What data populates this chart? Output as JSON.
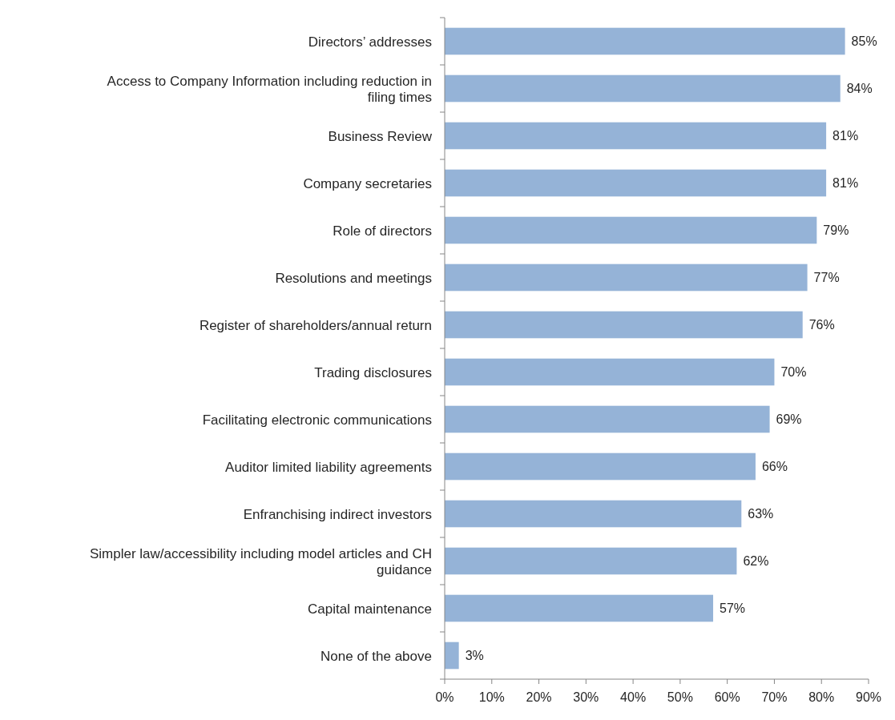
{
  "chart_data": {
    "type": "bar",
    "orientation": "horizontal",
    "categories": [
      "Directors’ addresses",
      "Access to Company Information  including reduction in filing times",
      "Business Review",
      "Company secretaries",
      "Role of directors",
      "Resolutions and meetings",
      "Register of shareholders/annual return",
      "Trading disclosures",
      "Facilitating electronic communications",
      "Auditor limited liability agreements",
      "Enfranchising indirect investors",
      "Simpler law/accessibility including model articles and CH guidance",
      "Capital maintenance",
      "None of the above"
    ],
    "values": [
      85,
      84,
      81,
      81,
      79,
      77,
      76,
      70,
      69,
      66,
      63,
      62,
      57,
      3
    ],
    "value_labels": [
      "85%",
      "84%",
      "81%",
      "81%",
      "79%",
      "77%",
      "76%",
      "70%",
      "69%",
      "66%",
      "63%",
      "62%",
      "57%",
      "3%"
    ],
    "color": "#95b3d7",
    "xlim": [
      0,
      90
    ],
    "xticks": [
      {
        "value": 0,
        "label": "0%"
      },
      {
        "value": 10,
        "label": "10%"
      },
      {
        "value": 20,
        "label": "20%"
      },
      {
        "value": 30,
        "label": "30%"
      },
      {
        "value": 40,
        "label": "40%"
      },
      {
        "value": 50,
        "label": "50%"
      },
      {
        "value": 60,
        "label": "60%"
      },
      {
        "value": 70,
        "label": "70%"
      },
      {
        "value": 80,
        "label": "80%"
      },
      {
        "value": 90,
        "label": "90%"
      }
    ],
    "grid": false
  }
}
